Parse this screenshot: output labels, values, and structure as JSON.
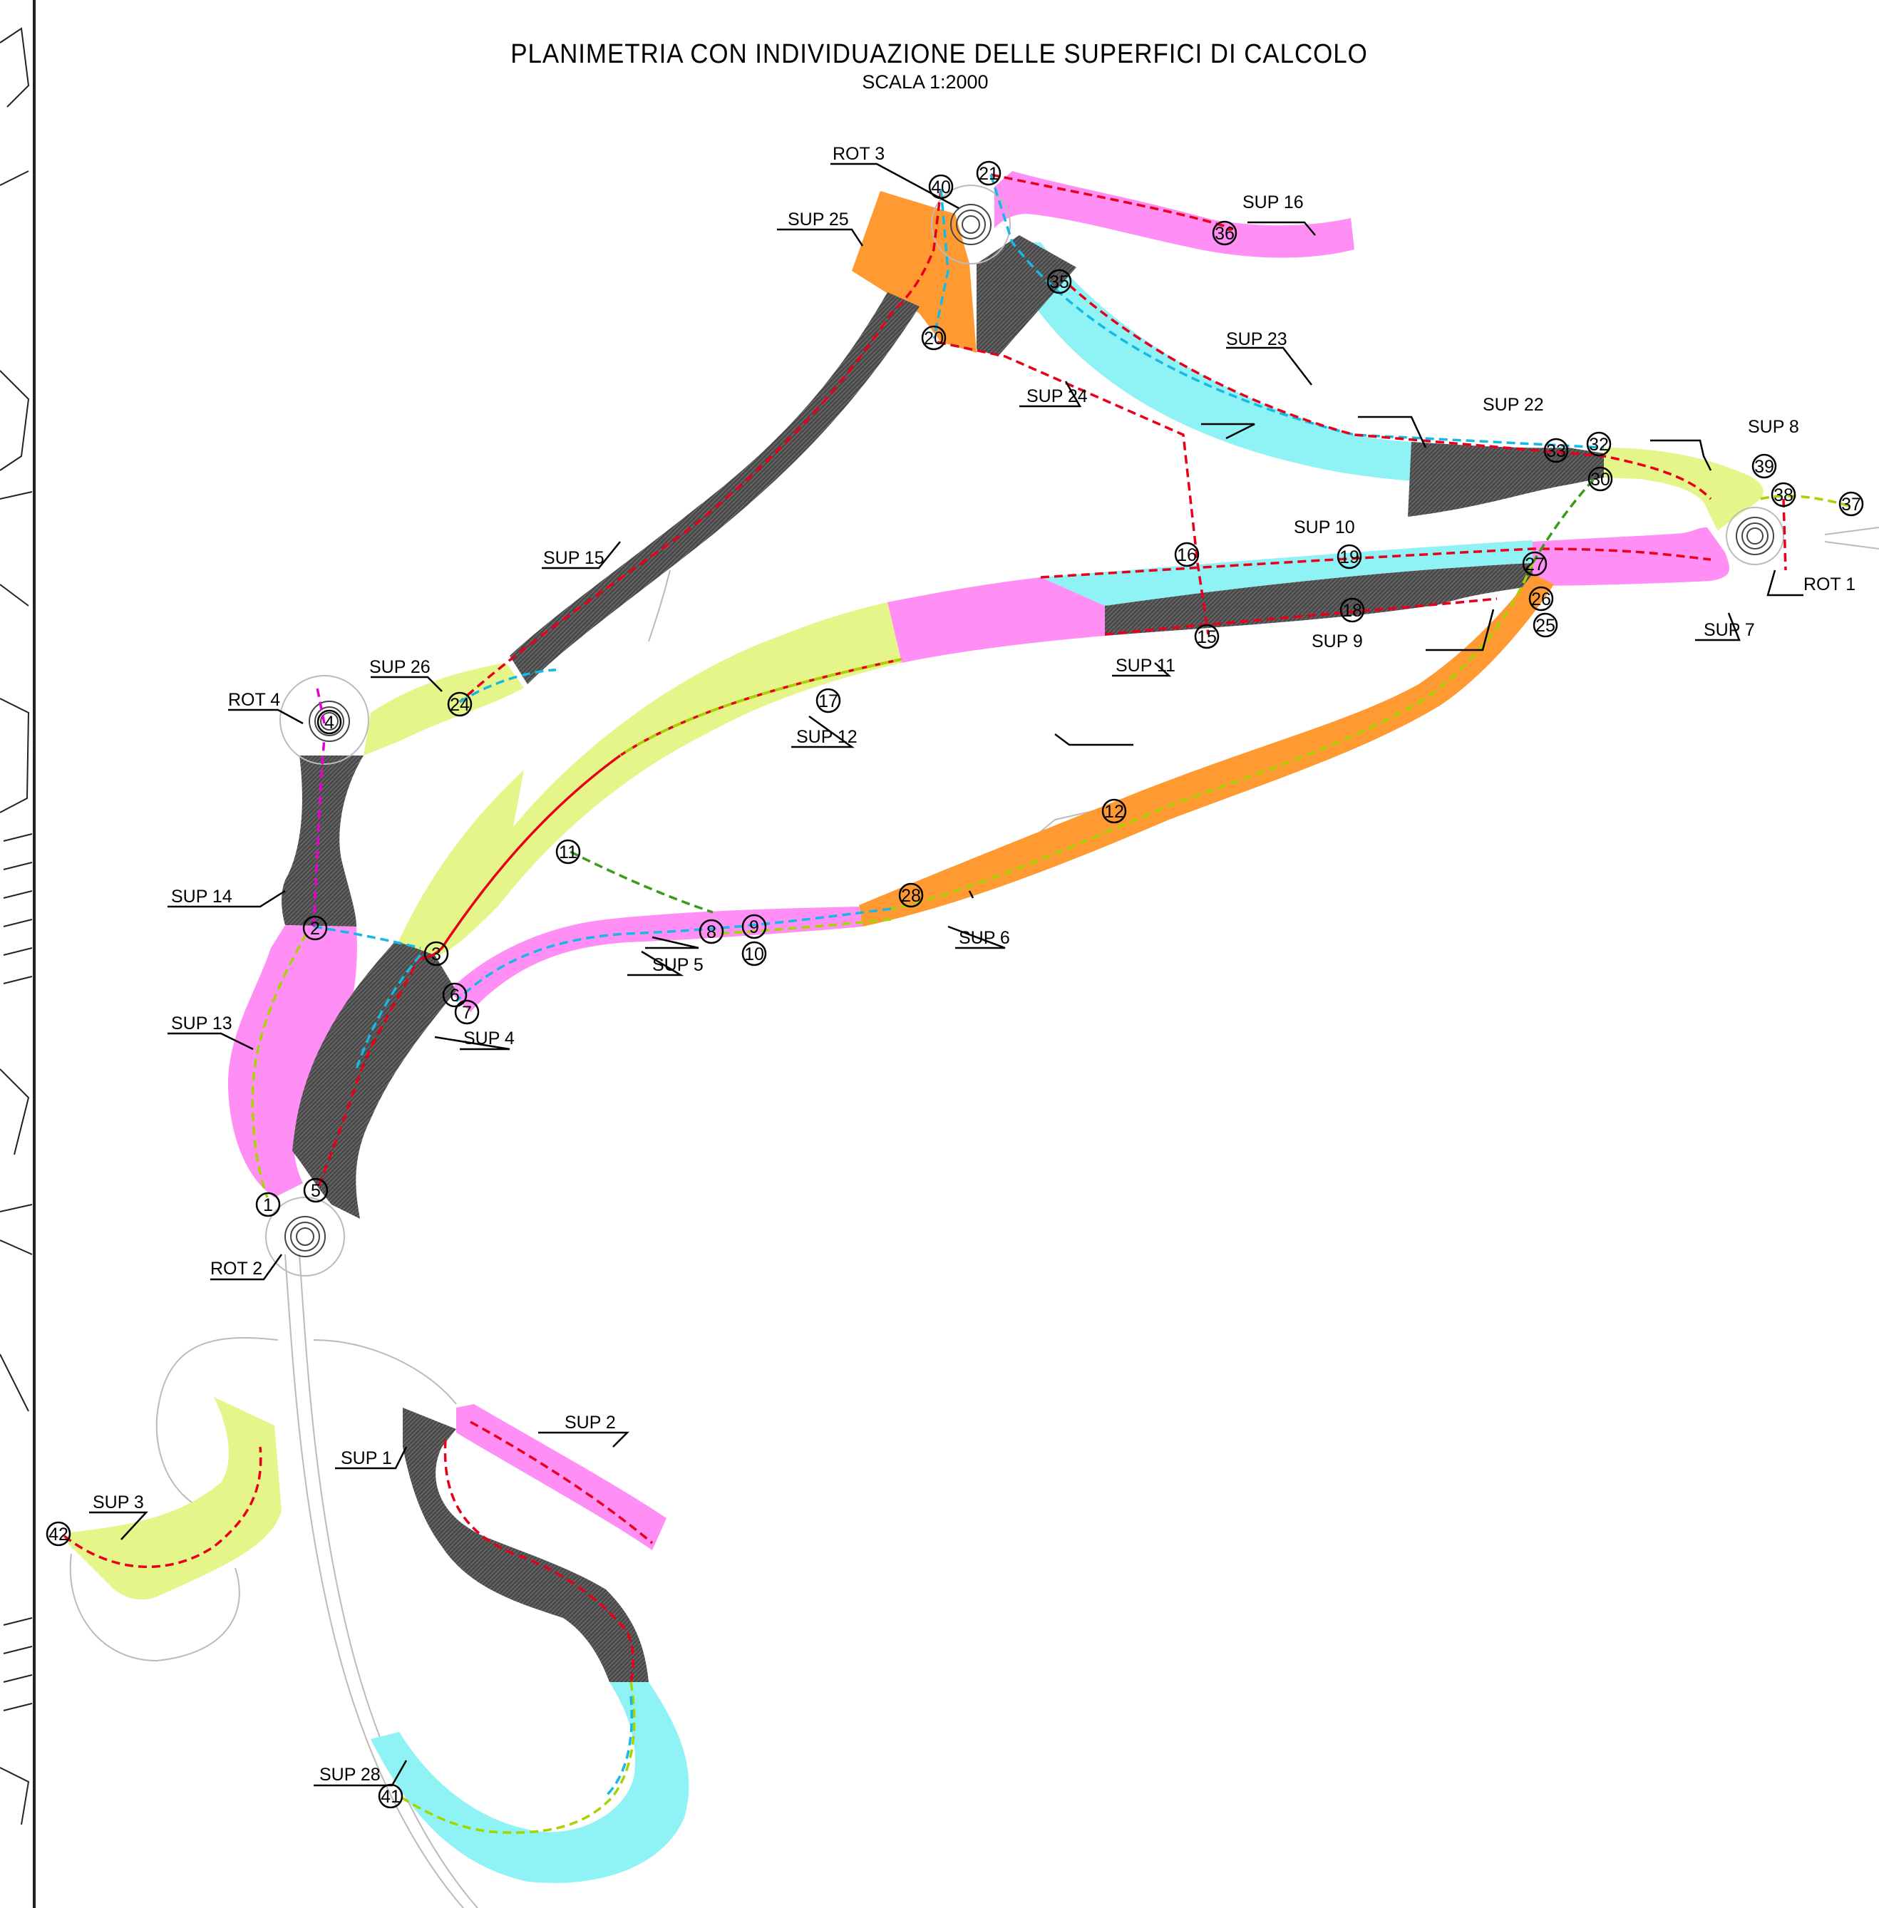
{
  "title": "PLANIMETRIA CON INDIVIDUAZIONE DELLE SUPERFICI DI CALCOLO",
  "scale": "SCALA 1:2000",
  "colors": {
    "grey_surface": "#4a4a4a",
    "magenta_surface": "#ff8ef5",
    "yellow_surface": "#e6f58a",
    "cyan_surface": "#8ff2f5",
    "orange_surface": "#ff9a33",
    "red_line": "#e8001a",
    "cyan_line": "#14b9e6",
    "green_line": "#3a9a1a",
    "lime_line": "#a6d400",
    "magenta_line": "#e600d2"
  },
  "surface_labels": {
    "sup1": "SUP 1",
    "sup2": "SUP 2",
    "sup3": "SUP 3",
    "sup4": "SUP 4",
    "sup5": "SUP 5",
    "sup6": "SUP 6",
    "sup7": "SUP 7",
    "sup8": "SUP 8",
    "sup9": "SUP 9",
    "sup10": "SUP 10",
    "sup11": "SUP 11",
    "sup12": "SUP 12",
    "sup13": "SUP 13",
    "sup14": "SUP 14",
    "sup15": "SUP 15",
    "sup16": "SUP 16",
    "sup22": "SUP 22",
    "sup23": "SUP 23",
    "sup24": "SUP 24",
    "sup25": "SUP 25",
    "sup26": "SUP 26",
    "sup28": "SUP 28"
  },
  "roundabout_labels": {
    "rot1": "ROT 1",
    "rot2": "ROT 2",
    "rot3": "ROT 3",
    "rot4": "ROT 4"
  },
  "nodes": [
    "1",
    "2",
    "3",
    "4",
    "5",
    "6",
    "7",
    "8",
    "9",
    "10",
    "11",
    "12",
    "15",
    "16",
    "17",
    "18",
    "19",
    "20",
    "21",
    "24",
    "25",
    "26",
    "27",
    "28",
    "30",
    "32",
    "33",
    "35",
    "36",
    "37",
    "38",
    "39",
    "40",
    "41",
    "42"
  ]
}
